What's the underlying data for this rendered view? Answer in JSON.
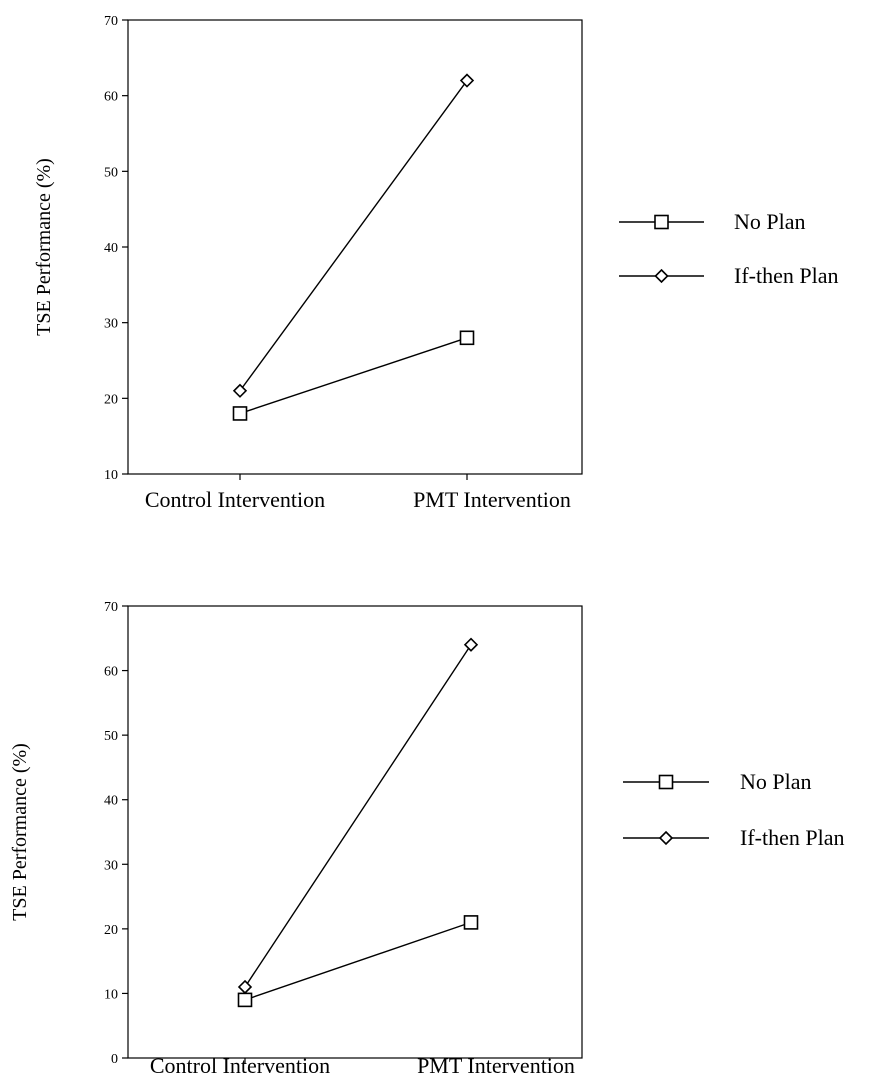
{
  "chart_data": [
    {
      "type": "line",
      "title": "",
      "xlabel": "",
      "ylabel": "TSE Performance (%)",
      "categories": [
        "Control Intervention",
        "PMT Intervention"
      ],
      "ylim": [
        10,
        70
      ],
      "yticks": [
        10,
        20,
        30,
        40,
        50,
        60,
        70
      ],
      "grid": false,
      "legend_position": "right",
      "series": [
        {
          "name": "No Plan",
          "marker": "square",
          "values": [
            18,
            28
          ]
        },
        {
          "name": "If-then Plan",
          "marker": "diamond",
          "values": [
            21,
            62
          ]
        }
      ]
    },
    {
      "type": "line",
      "title": "",
      "xlabel": "",
      "ylabel": "TSE Performance (%)",
      "categories": [
        "Control Intervention",
        "PMT Intervention"
      ],
      "ylim": [
        0,
        70
      ],
      "yticks": [
        0,
        10,
        20,
        30,
        40,
        50,
        60,
        70
      ],
      "grid": false,
      "legend_position": "right",
      "series": [
        {
          "name": "No Plan",
          "marker": "square",
          "values": [
            9,
            21
          ]
        },
        {
          "name": "If-then Plan",
          "marker": "diamond",
          "values": [
            11,
            64
          ]
        }
      ]
    }
  ]
}
